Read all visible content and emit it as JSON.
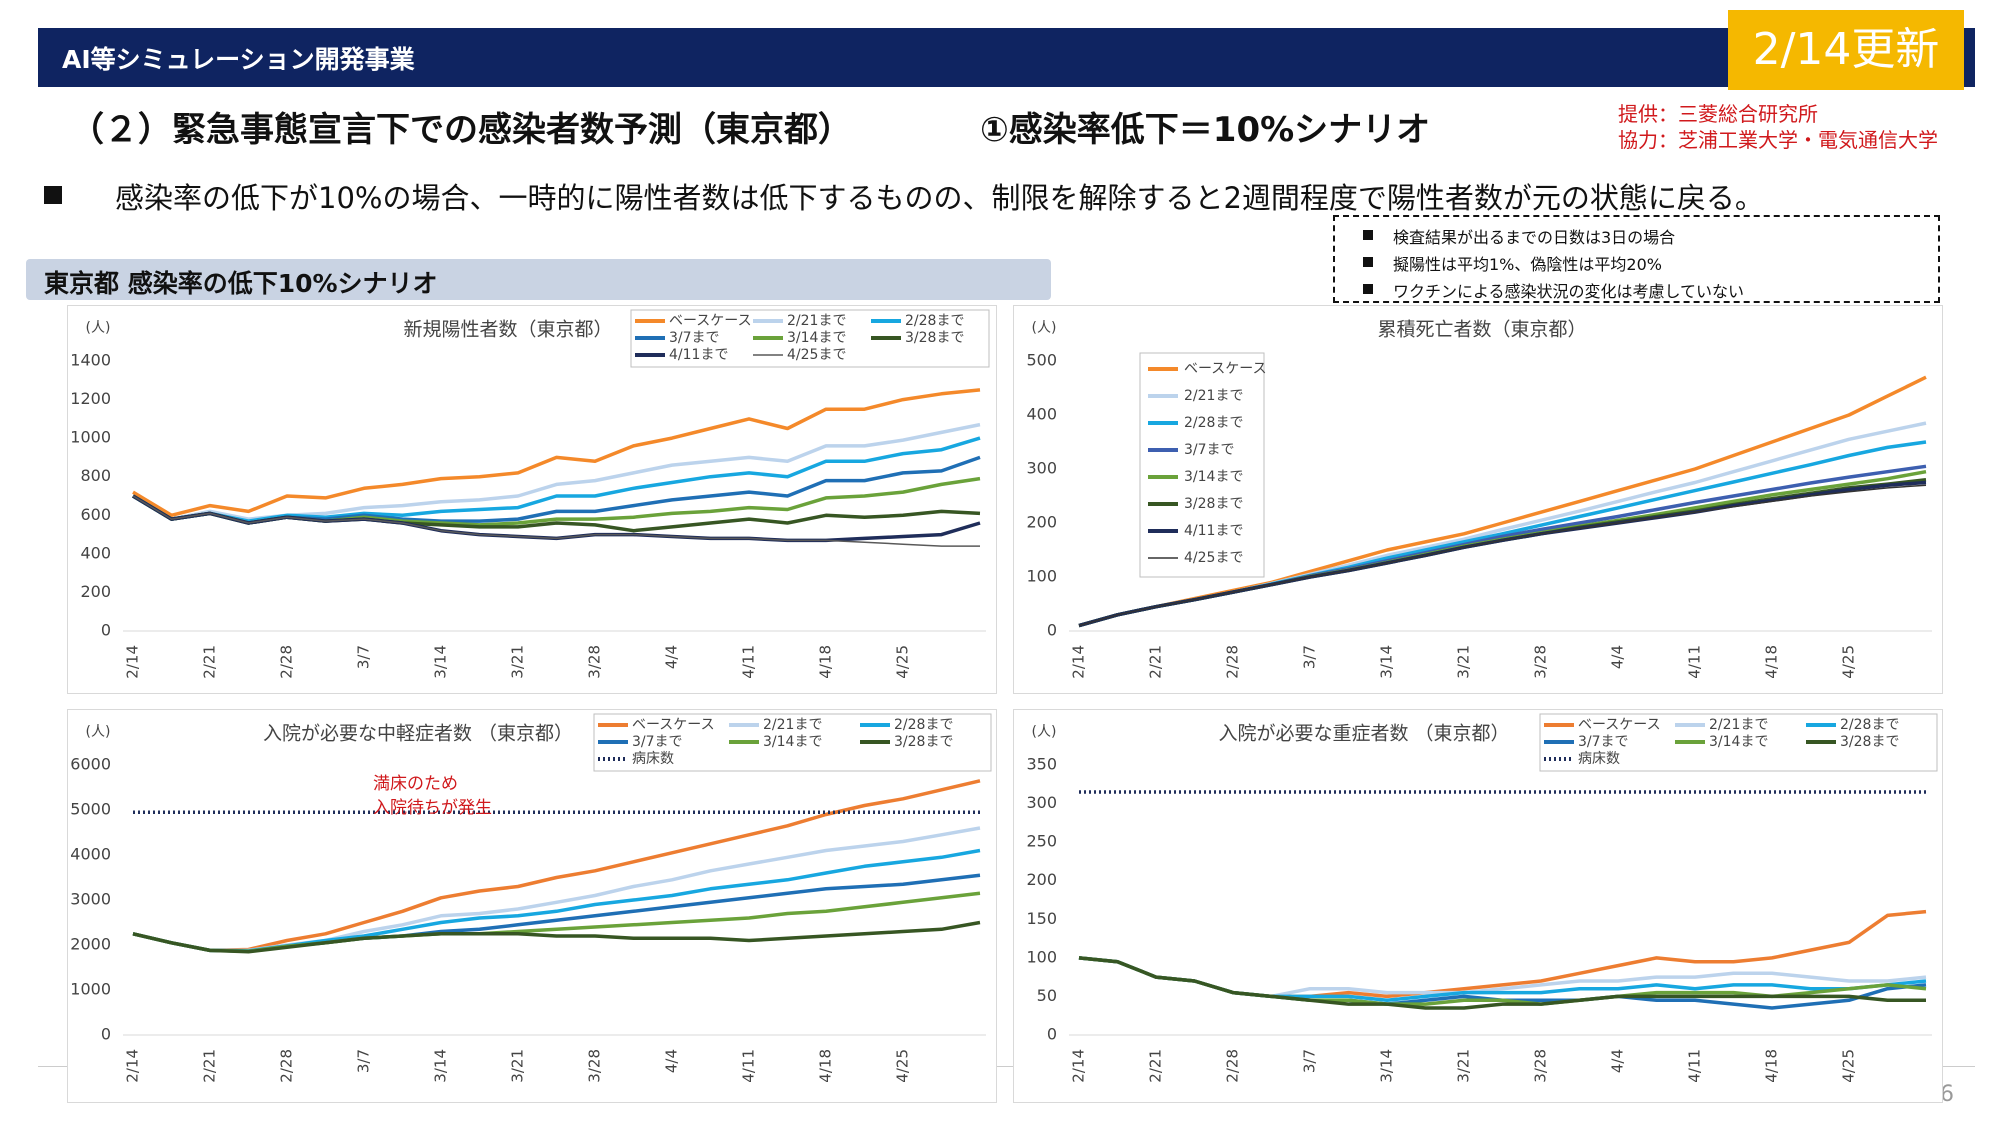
{
  "header_title": "AI等シミュレーション開発事業",
  "update_label": "2/14更新",
  "title": "（２）緊急事態宣言下での感染者数予測（東京都）",
  "scenario": "①感染率低下＝10%シナリオ",
  "providers": [
    "提供：三菱総合研究所",
    "協力：芝浦工業大学・電気通信大学"
  ],
  "bullet": "感染率の低下が10%の場合、一時的に陽性者数は低下するものの、制限を解除すると2週間程度で陽性者数が元の状態に戻る。",
  "notes": [
    "検査結果が出るまでの日数は3日の場合",
    "擬陽性は平均1%、偽陰性は平均20%",
    "ワクチンによる感染状況の変化は考慮していない"
  ],
  "section_label": "東京都  感染率の低下10%シナリオ",
  "page_number": "6",
  "chart_data": [
    {
      "type": "line",
      "title": "新規陽性者数（東京都）",
      "ylabel": "(人)",
      "legend": "top-right",
      "legend_columns": 3,
      "categories": [
        "2/14",
        null,
        "2/21",
        null,
        "2/28",
        null,
        "3/7",
        null,
        "3/14",
        null,
        "3/21",
        null,
        "3/28",
        null,
        "4/4",
        null,
        "4/11",
        null,
        "4/18",
        null,
        "4/25",
        null,
        null
      ],
      "ylim": [
        0,
        1400
      ],
      "yticks": [
        0,
        200,
        400,
        600,
        800,
        1000,
        1200,
        1400
      ],
      "grid": false,
      "series": [
        {
          "name": "ベースケース",
          "color": "#f4892a",
          "values": [
            720,
            600,
            650,
            620,
            700,
            690,
            740,
            760,
            790,
            800,
            820,
            900,
            880,
            960,
            1000,
            1050,
            1100,
            1050,
            1150,
            1150,
            1200,
            1230,
            1250
          ]
        },
        {
          "name": "2/21まで",
          "color": "#bcd3ec",
          "values": [
            700,
            580,
            620,
            580,
            600,
            610,
            640,
            650,
            670,
            680,
            700,
            760,
            780,
            820,
            860,
            880,
            900,
            880,
            960,
            960,
            990,
            1030,
            1070
          ]
        },
        {
          "name": "2/28まで",
          "color": "#17a7e0",
          "values": [
            700,
            580,
            610,
            570,
            600,
            590,
            610,
            600,
            620,
            630,
            640,
            700,
            700,
            740,
            770,
            800,
            820,
            800,
            880,
            880,
            920,
            940,
            1000
          ]
        },
        {
          "name": "3/7まで",
          "color": "#1f6fb5",
          "values": [
            700,
            580,
            610,
            560,
            590,
            580,
            600,
            580,
            570,
            570,
            580,
            620,
            620,
            650,
            680,
            700,
            720,
            700,
            780,
            780,
            820,
            830,
            900
          ]
        },
        {
          "name": "3/14まで",
          "color": "#6aa23a",
          "values": [
            700,
            580,
            610,
            560,
            590,
            570,
            590,
            570,
            560,
            550,
            560,
            580,
            580,
            590,
            610,
            620,
            640,
            630,
            690,
            700,
            720,
            760,
            790
          ]
        },
        {
          "name": "3/28まで",
          "color": "#375623",
          "values": [
            700,
            580,
            610,
            560,
            590,
            570,
            580,
            560,
            550,
            540,
            540,
            560,
            550,
            520,
            540,
            560,
            580,
            560,
            600,
            590,
            600,
            620,
            610
          ]
        },
        {
          "name": "4/11まで",
          "color": "#1f2d5a",
          "values": [
            700,
            580,
            610,
            560,
            590,
            570,
            580,
            560,
            520,
            500,
            490,
            480,
            500,
            500,
            490,
            480,
            480,
            470,
            470,
            480,
            490,
            500,
            560
          ]
        },
        {
          "name": "4/25まで",
          "color": "#595959",
          "style": "thin",
          "values": [
            700,
            580,
            610,
            560,
            590,
            570,
            580,
            560,
            520,
            500,
            490,
            480,
            500,
            500,
            490,
            480,
            480,
            470,
            470,
            460,
            450,
            440,
            440
          ]
        }
      ]
    },
    {
      "type": "line",
      "title": "累積死亡者数（東京都）",
      "ylabel": "(人)",
      "legend": "left",
      "legend_columns": 1,
      "categories": [
        "2/14",
        null,
        "2/21",
        null,
        "2/28",
        null,
        "3/7",
        null,
        "3/14",
        null,
        "3/21",
        null,
        "3/28",
        null,
        "4/4",
        null,
        "4/11",
        null,
        "4/18",
        null,
        "4/25",
        null,
        null
      ],
      "ylim": [
        0,
        500
      ],
      "yticks": [
        0,
        100,
        200,
        300,
        400,
        500
      ],
      "grid": false,
      "series": [
        {
          "name": "ベースケース",
          "color": "#f4892a",
          "values": [
            10,
            30,
            45,
            60,
            75,
            90,
            110,
            130,
            150,
            165,
            180,
            200,
            220,
            240,
            260,
            280,
            300,
            325,
            350,
            375,
            400,
            435,
            470
          ]
        },
        {
          "name": "2/21まで",
          "color": "#bcd3ec",
          "values": [
            10,
            30,
            45,
            58,
            72,
            88,
            105,
            122,
            140,
            155,
            170,
            188,
            205,
            222,
            240,
            258,
            275,
            295,
            315,
            335,
            355,
            370,
            385
          ]
        },
        {
          "name": "2/28まで",
          "color": "#17a7e0",
          "values": [
            10,
            30,
            45,
            58,
            72,
            87,
            103,
            118,
            135,
            150,
            165,
            180,
            196,
            212,
            228,
            244,
            260,
            276,
            292,
            308,
            325,
            340,
            350
          ]
        },
        {
          "name": "3/7まで",
          "color": "#3d5fb0",
          "values": [
            10,
            30,
            45,
            58,
            72,
            86,
            102,
            115,
            130,
            145,
            160,
            175,
            188,
            200,
            212,
            225,
            238,
            250,
            262,
            274,
            285,
            295,
            305
          ]
        },
        {
          "name": "3/14まで",
          "color": "#6aa23a",
          "values": [
            10,
            30,
            45,
            58,
            72,
            86,
            101,
            113,
            127,
            142,
            157,
            170,
            182,
            194,
            205,
            216,
            228,
            240,
            252,
            262,
            272,
            282,
            295
          ]
        },
        {
          "name": "3/28まで",
          "color": "#375623",
          "values": [
            10,
            30,
            45,
            58,
            72,
            86,
            100,
            112,
            126,
            140,
            155,
            168,
            180,
            192,
            202,
            212,
            222,
            234,
            245,
            255,
            265,
            272,
            280
          ]
        },
        {
          "name": "4/11まで",
          "color": "#1f2d5a",
          "values": [
            10,
            30,
            45,
            58,
            72,
            86,
            100,
            112,
            126,
            140,
            155,
            168,
            180,
            190,
            200,
            210,
            220,
            232,
            242,
            252,
            262,
            270,
            275
          ]
        },
        {
          "name": "4/25まで",
          "color": "#333333",
          "style": "thin",
          "values": [
            10,
            30,
            45,
            58,
            72,
            86,
            100,
            112,
            126,
            140,
            155,
            168,
            180,
            190,
            200,
            210,
            220,
            230,
            240,
            250,
            258,
            265,
            270
          ]
        }
      ]
    },
    {
      "type": "line",
      "title": "入院が必要な中軽症者数 （東京都）",
      "ylabel": "(人)",
      "legend": "top-right",
      "legend_columns": 3,
      "annotation": [
        "満床のため",
        "入院待ちが発生"
      ],
      "categories": [
        "2/14",
        null,
        "2/21",
        null,
        "2/28",
        null,
        "3/7",
        null,
        "3/14",
        null,
        "3/21",
        null,
        "3/28",
        null,
        "4/4",
        null,
        "4/11",
        null,
        "4/18",
        null,
        "4/25",
        null,
        null
      ],
      "ylim": [
        0,
        6000
      ],
      "yticks": [
        0,
        1000,
        2000,
        3000,
        4000,
        5000,
        6000
      ],
      "grid": false,
      "series": [
        {
          "name": "ベースケース",
          "color": "#ed7d31",
          "values": [
            2250,
            2050,
            1880,
            1900,
            2100,
            2250,
            2500,
            2750,
            3050,
            3200,
            3300,
            3500,
            3650,
            3850,
            4050,
            4250,
            4450,
            4650,
            4900,
            5100,
            5250,
            5450,
            5650
          ]
        },
        {
          "name": "2/21まで",
          "color": "#bcd3ec",
          "values": [
            2250,
            2050,
            1880,
            1880,
            2000,
            2100,
            2300,
            2450,
            2650,
            2700,
            2800,
            2950,
            3100,
            3300,
            3450,
            3650,
            3800,
            3950,
            4100,
            4200,
            4300,
            4450,
            4600
          ]
        },
        {
          "name": "2/28まで",
          "color": "#17a7e0",
          "values": [
            2250,
            2050,
            1880,
            1870,
            1980,
            2100,
            2200,
            2350,
            2500,
            2600,
            2650,
            2750,
            2900,
            3000,
            3100,
            3250,
            3350,
            3450,
            3600,
            3750,
            3850,
            3950,
            4100
          ]
        },
        {
          "name": "3/7まで",
          "color": "#1f6fb5",
          "values": [
            2250,
            2050,
            1880,
            1860,
            1970,
            2050,
            2150,
            2200,
            2300,
            2350,
            2450,
            2550,
            2650,
            2750,
            2850,
            2950,
            3050,
            3150,
            3250,
            3300,
            3350,
            3450,
            3550
          ]
        },
        {
          "name": "3/14まで",
          "color": "#6aa23a",
          "values": [
            2250,
            2050,
            1880,
            1860,
            1970,
            2050,
            2150,
            2200,
            2250,
            2250,
            2300,
            2350,
            2400,
            2450,
            2500,
            2550,
            2600,
            2700,
            2750,
            2850,
            2950,
            3050,
            3150
          ]
        },
        {
          "name": "3/28まで",
          "color": "#375623",
          "values": [
            2250,
            2050,
            1880,
            1850,
            1950,
            2050,
            2150,
            2200,
            2250,
            2250,
            2250,
            2200,
            2200,
            2150,
            2150,
            2150,
            2100,
            2150,
            2200,
            2250,
            2300,
            2350,
            2500
          ]
        },
        {
          "name": "病床数",
          "color": "#1f2d5a",
          "style": "dotted",
          "values": [
            4950,
            4950,
            4950,
            4950,
            4950,
            4950,
            4950,
            4950,
            4950,
            4950,
            4950,
            4950,
            4950,
            4950,
            4950,
            4950,
            4950,
            4950,
            4950,
            4950,
            4950,
            4950,
            4950
          ]
        }
      ]
    },
    {
      "type": "line",
      "title": "入院が必要な重症者数 （東京都）",
      "ylabel": "(人)",
      "legend": "top-right",
      "legend_columns": 3,
      "categories": [
        "2/14",
        null,
        "2/21",
        null,
        "2/28",
        null,
        "3/7",
        null,
        "3/14",
        null,
        "3/21",
        null,
        "3/28",
        null,
        "4/4",
        null,
        "4/11",
        null,
        "4/18",
        null,
        "4/25",
        null,
        null
      ],
      "ylim": [
        0,
        350
      ],
      "yticks": [
        0,
        50,
        100,
        150,
        200,
        250,
        300,
        350
      ],
      "grid": false,
      "series": [
        {
          "name": "ベースケース",
          "color": "#ed7d31",
          "values": [
            100,
            95,
            75,
            70,
            55,
            50,
            50,
            55,
            50,
            55,
            60,
            65,
            70,
            80,
            90,
            100,
            95,
            95,
            100,
            110,
            120,
            155,
            160
          ]
        },
        {
          "name": "2/21まで",
          "color": "#bcd3ec",
          "values": [
            100,
            95,
            75,
            70,
            55,
            50,
            60,
            60,
            55,
            55,
            55,
            60,
            65,
            70,
            70,
            75,
            75,
            80,
            80,
            75,
            70,
            70,
            75
          ]
        },
        {
          "name": "2/28まで",
          "color": "#17a7e0",
          "values": [
            100,
            95,
            75,
            70,
            55,
            50,
            50,
            50,
            45,
            50,
            55,
            55,
            55,
            60,
            60,
            65,
            60,
            65,
            65,
            60,
            60,
            65,
            70
          ]
        },
        {
          "name": "3/7まで",
          "color": "#1f6fb5",
          "values": [
            100,
            95,
            75,
            70,
            55,
            50,
            45,
            45,
            40,
            45,
            50,
            45,
            45,
            45,
            50,
            45,
            45,
            40,
            35,
            40,
            45,
            60,
            65
          ]
        },
        {
          "name": "3/14まで",
          "color": "#6aa23a",
          "values": [
            100,
            95,
            75,
            70,
            55,
            50,
            45,
            45,
            40,
            40,
            45,
            45,
            40,
            45,
            50,
            55,
            55,
            55,
            50,
            55,
            60,
            65,
            60
          ]
        },
        {
          "name": "3/28まで",
          "color": "#375623",
          "values": [
            100,
            95,
            75,
            70,
            55,
            50,
            45,
            40,
            40,
            35,
            35,
            40,
            40,
            45,
            50,
            50,
            50,
            50,
            50,
            50,
            50,
            45,
            45
          ]
        },
        {
          "name": "病床数",
          "color": "#1f2d5a",
          "style": "dotted",
          "values": [
            315,
            315,
            315,
            315,
            315,
            315,
            315,
            315,
            315,
            315,
            315,
            315,
            315,
            315,
            315,
            315,
            315,
            315,
            315,
            315,
            315,
            315,
            315
          ]
        }
      ]
    }
  ]
}
